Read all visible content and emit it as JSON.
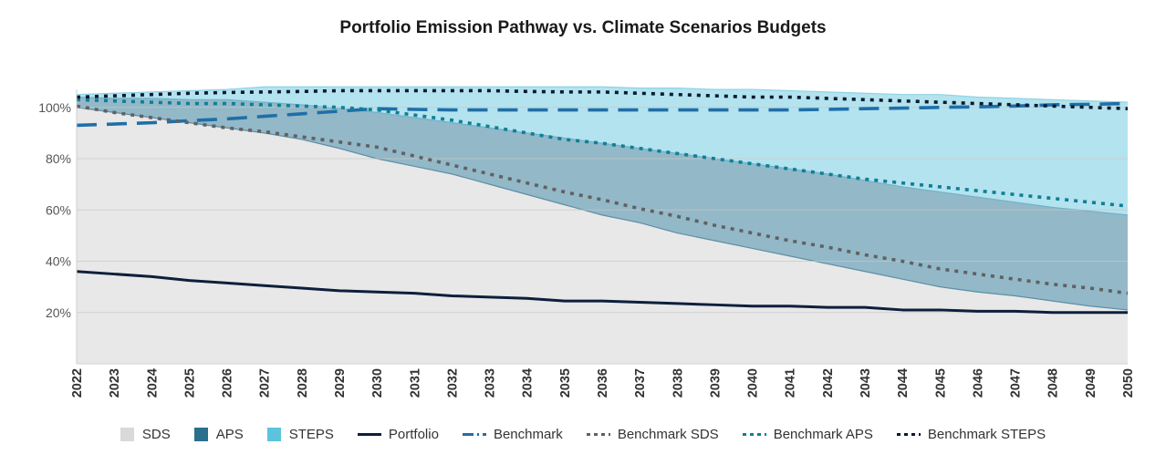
{
  "chart_data": {
    "type": "area",
    "title": "Portfolio Emission Pathway vs. Climate Scenarios Budgets",
    "xlabel": "",
    "ylabel": "",
    "ylim": [
      0,
      110
    ],
    "yticks": [
      20,
      40,
      60,
      80,
      100
    ],
    "ytick_labels": [
      "20%",
      "40%",
      "60%",
      "80%",
      "100%"
    ],
    "grid": true,
    "legend_position": "bottom",
    "x": [
      2022,
      2023,
      2024,
      2025,
      2026,
      2027,
      2028,
      2029,
      2030,
      2031,
      2032,
      2033,
      2034,
      2035,
      2036,
      2037,
      2038,
      2039,
      2040,
      2041,
      2042,
      2043,
      2044,
      2045,
      2046,
      2047,
      2048,
      2049,
      2050
    ],
    "xtick_labels": [
      "2022",
      "2023",
      "2024",
      "2025",
      "2026",
      "2027",
      "2028",
      "2029",
      "2030",
      "2031",
      "2032",
      "2033",
      "2034",
      "2035",
      "2036",
      "2037",
      "2038",
      "2039",
      "2040",
      "2041",
      "2042",
      "2043",
      "2044",
      "2045",
      "2046",
      "2047",
      "2048",
      "2049",
      "2050"
    ],
    "series": [
      {
        "name": "SDS",
        "kind": "area",
        "color": "#e8e8e8",
        "legend_color": "#d9d9d9",
        "values": [
          100,
          98,
          96,
          94,
          92,
          90,
          87.5,
          84,
          80,
          77,
          74,
          70,
          66,
          62,
          58,
          55,
          51,
          48,
          45,
          42,
          39,
          36,
          33,
          30,
          28,
          26.5,
          24.5,
          22.5,
          21
        ]
      },
      {
        "name": "APS",
        "kind": "area",
        "color": "#93b8c8",
        "legend_color": "#2a6f8e",
        "values": [
          104,
          103.5,
          103.5,
          103,
          103,
          102,
          101,
          99.5,
          98,
          96,
          94,
          92,
          90,
          88,
          86,
          84,
          82,
          80,
          78,
          76,
          74,
          71.5,
          69,
          67,
          65,
          63,
          61,
          59.5,
          58
        ]
      },
      {
        "name": "STEPS",
        "kind": "area",
        "color": "#b3e3ef",
        "legend_color": "#5bc4dc",
        "values": [
          105,
          105.5,
          106,
          106.5,
          107,
          108,
          108,
          108,
          108,
          108,
          108,
          108,
          108,
          108,
          108,
          107.5,
          107.5,
          107,
          107,
          106.5,
          106,
          105.5,
          105,
          105,
          104,
          103.5,
          103,
          102.5,
          102
        ]
      },
      {
        "name": "Portfolio",
        "kind": "line",
        "color": "#0d1f3c",
        "dash": "solid",
        "values": [
          36,
          35,
          34,
          32.5,
          31.5,
          30.5,
          29.5,
          28.5,
          28,
          27.5,
          26.5,
          26,
          25.5,
          24.5,
          24.5,
          24,
          23.5,
          23,
          22.5,
          22.5,
          22,
          22,
          21,
          21,
          20.5,
          20.5,
          20,
          20,
          20
        ]
      },
      {
        "name": "Benchmark",
        "kind": "line",
        "color": "#1f6fa8",
        "dash": "long",
        "values": [
          93,
          93.5,
          94,
          94.8,
          95.5,
          96.5,
          97.5,
          98.5,
          99.5,
          99.2,
          99,
          99,
          99,
          99,
          99,
          99,
          99,
          99,
          99,
          99,
          99.2,
          99.5,
          99.7,
          100,
          100.2,
          100.5,
          101,
          101.2,
          101.5
        ]
      },
      {
        "name": "Benchmark SDS",
        "kind": "line",
        "color": "#616161",
        "dash": "dot",
        "values": [
          100.5,
          98,
          96,
          94,
          92,
          90.5,
          88.5,
          86.5,
          84.5,
          81,
          77.5,
          74,
          70.5,
          67,
          64,
          60.5,
          57.5,
          54,
          51,
          48,
          45.5,
          42.5,
          40,
          37,
          35,
          33,
          31,
          29.5,
          27.5
        ]
      },
      {
        "name": "Benchmark APS",
        "kind": "line",
        "color": "#0f7f96",
        "dash": "dot",
        "values": [
          103,
          102.5,
          102,
          101.5,
          101.5,
          101,
          100.5,
          100,
          99,
          97,
          95,
          92.5,
          90,
          87.5,
          86,
          84,
          82,
          80,
          78,
          76,
          74,
          72,
          70.5,
          69,
          67.5,
          66,
          64.5,
          63,
          61.5
        ]
      },
      {
        "name": "Benchmark STEPS",
        "kind": "line",
        "color": "#0a1a30",
        "dash": "dot",
        "values": [
          104,
          104.5,
          105,
          105.5,
          105.8,
          106,
          106.2,
          106.5,
          106.5,
          106.5,
          106.5,
          106.5,
          106.2,
          106,
          106,
          105.5,
          105,
          104.5,
          104,
          104,
          103.5,
          103,
          102.5,
          102,
          101.5,
          101,
          100.5,
          100,
          99.5
        ]
      }
    ]
  },
  "legend": [
    {
      "label": "SDS",
      "type": "swatch",
      "color": "#d9d9d9"
    },
    {
      "label": "APS",
      "type": "swatch",
      "color": "#2a6f8e"
    },
    {
      "label": "STEPS",
      "type": "swatch",
      "color": "#5bc4dc"
    },
    {
      "label": "Portfolio",
      "type": "line",
      "color": "#0d1f3c",
      "dash": "solid"
    },
    {
      "label": "Benchmark",
      "type": "line",
      "color": "#1f6fa8",
      "dash": "dashdot"
    },
    {
      "label": "Benchmark SDS",
      "type": "line",
      "color": "#616161",
      "dash": "dot"
    },
    {
      "label": "Benchmark APS",
      "type": "line",
      "color": "#0f7f96",
      "dash": "dot"
    },
    {
      "label": "Benchmark STEPS",
      "type": "line",
      "color": "#0a1a30",
      "dash": "dot"
    }
  ]
}
